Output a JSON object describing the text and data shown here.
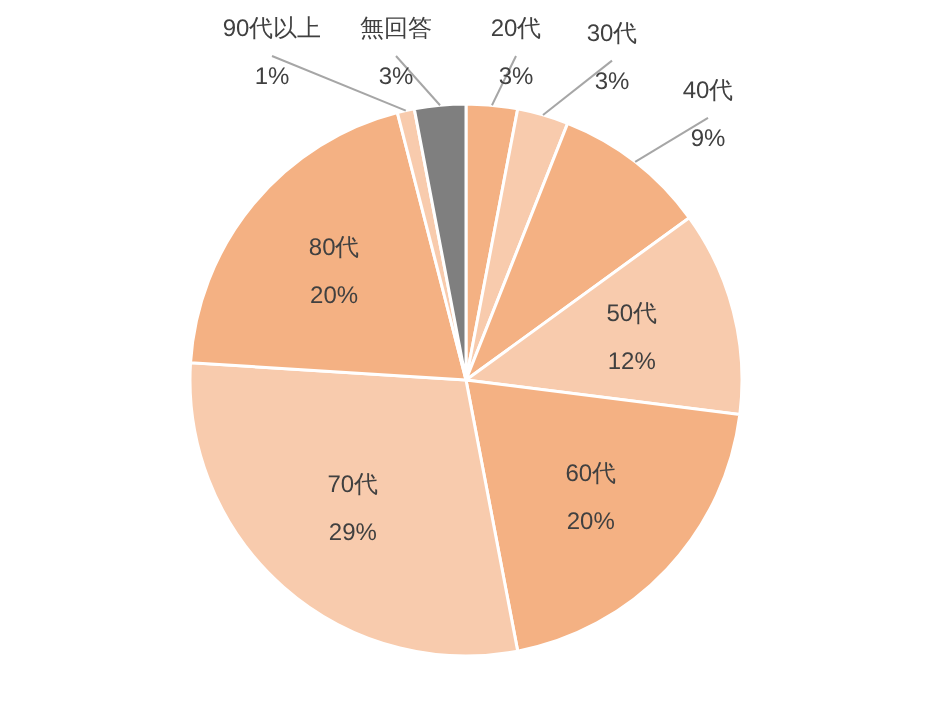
{
  "chart_data": {
    "type": "pie",
    "categories": [
      "20代",
      "30代",
      "40代",
      "50代",
      "60代",
      "70代",
      "80代",
      "90代以上",
      "無回答"
    ],
    "values": [
      3,
      3,
      9,
      12,
      20,
      29,
      20,
      1,
      3
    ],
    "colors": [
      "#f4b183",
      "#f8cbad",
      "#f4b183",
      "#f8cbad",
      "#f4b183",
      "#f8cbad",
      "#f4b183",
      "#f8cbad",
      "#7f7f7f"
    ],
    "value_labels": [
      "3%",
      "3%",
      "9%",
      "12%",
      "20%",
      "29%",
      "20%",
      "1%",
      "3%"
    ]
  }
}
